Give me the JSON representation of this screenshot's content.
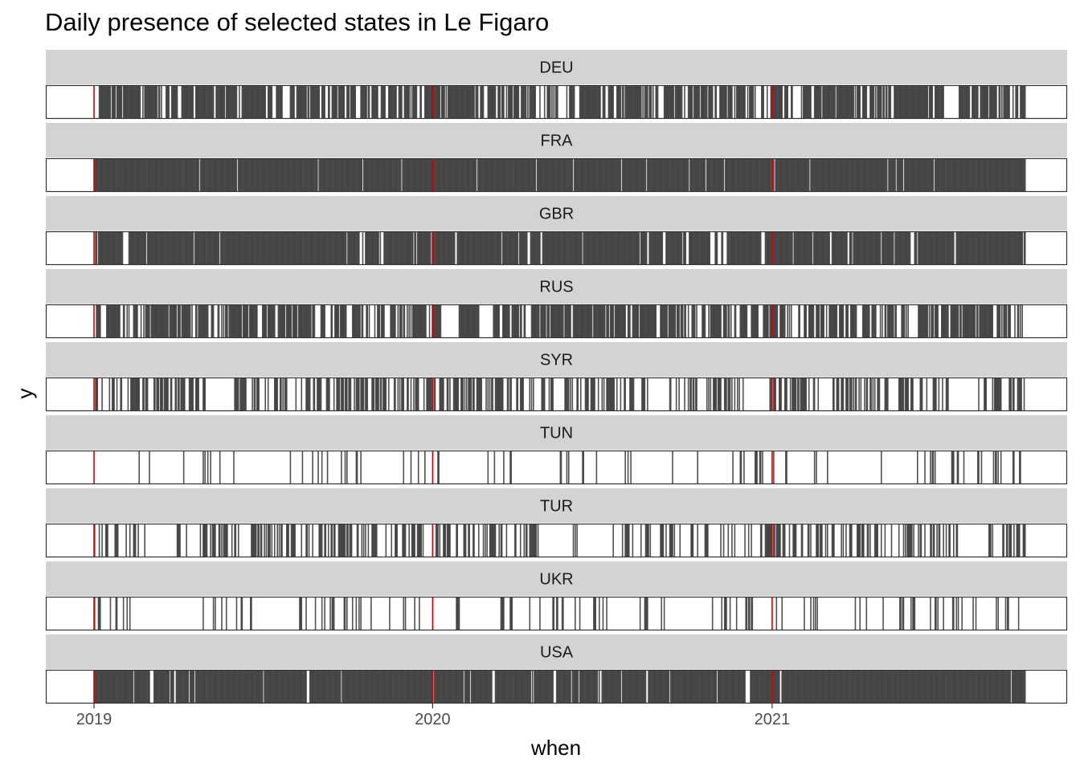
{
  "chart_data": {
    "type": "barcode",
    "title": "Daily presence of selected states in Le Figaro",
    "xlabel": "when",
    "ylabel": "y",
    "x_range": [
      "2018-11-10",
      "2021-11-15"
    ],
    "data_range": [
      "2019-01-01",
      "2021-09-30"
    ],
    "x_ticks": [
      {
        "label": "2019",
        "date": "2019-01-01"
      },
      {
        "label": "2020",
        "date": "2020-01-01"
      },
      {
        "label": "2021",
        "date": "2021-01-01"
      }
    ],
    "reference_lines": {
      "color": "#d00000",
      "dates": [
        "2019-01-01",
        "2020-01-01",
        "2021-01-01"
      ]
    },
    "mark_color": "#333333",
    "strip_fill": "#d3d3d3",
    "panel_border": "#333333",
    "facets": [
      {
        "label": "DEU",
        "gaps": [
          [
            "2019-02-20",
            "2019-02-21"
          ],
          [
            "2019-05-10",
            "2019-05-11"
          ],
          [
            "2019-09-12",
            "2019-09-13"
          ],
          [
            "2019-10-10",
            "2019-10-12"
          ],
          [
            "2020-02-26",
            "2020-02-27"
          ],
          [
            "2020-04-26",
            "2020-04-29"
          ],
          [
            "2020-05-22",
            "2020-05-23"
          ],
          [
            "2020-07-05",
            "2020-07-07"
          ],
          [
            "2020-11-02",
            "2020-11-04"
          ],
          [
            "2021-01-28",
            "2021-01-31"
          ],
          [
            "2021-07-05",
            "2021-07-20"
          ],
          [
            "2021-08-02",
            "2021-08-03"
          ]
        ],
        "density": 0.64
      },
      {
        "label": "FRA",
        "gaps": [],
        "density": 1.0
      },
      {
        "label": "GBR",
        "gaps": [],
        "density": 0.7
      },
      {
        "label": "RUS",
        "gaps": [
          [
            "2020-01-10",
            "2020-01-25"
          ],
          [
            "2020-02-20",
            "2020-03-05"
          ],
          [
            "2020-04-10",
            "2020-04-15"
          ]
        ],
        "density": 0.6
      },
      {
        "label": "SYR",
        "gaps": [
          [
            "2019-05-01",
            "2019-05-30"
          ],
          [
            "2020-05-10",
            "2020-05-20"
          ],
          [
            "2020-08-20",
            "2020-09-10"
          ],
          [
            "2020-12-01",
            "2020-12-28"
          ],
          [
            "2021-07-10",
            "2021-08-10"
          ]
        ],
        "density": 0.45
      },
      {
        "label": "TUN",
        "gaps": [
          [
            "2019-01-10",
            "2019-02-10"
          ],
          [
            "2019-03-05",
            "2019-04-05"
          ],
          [
            "2019-06-01",
            "2019-07-05"
          ],
          [
            "2019-10-25",
            "2019-11-28"
          ],
          [
            "2020-01-20",
            "2020-02-25"
          ],
          [
            "2020-04-10",
            "2020-05-15"
          ],
          [
            "2020-08-10",
            "2020-09-10"
          ],
          [
            "2020-10-20",
            "2020-11-15"
          ],
          [
            "2021-03-05",
            "2021-04-05"
          ]
        ],
        "density": 0.14
      },
      {
        "label": "TUR",
        "gaps": [
          [
            "2019-03-01",
            "2019-03-25"
          ],
          [
            "2020-05-01",
            "2020-05-30"
          ],
          [
            "2020-06-05",
            "2020-07-10"
          ],
          [
            "2021-07-20",
            "2021-08-20"
          ]
        ],
        "density": 0.4
      },
      {
        "label": "UKR",
        "gaps": [
          [
            "2019-03-01",
            "2019-04-10"
          ],
          [
            "2019-06-20",
            "2019-07-25"
          ],
          [
            "2019-12-20",
            "2020-01-25"
          ],
          [
            "2020-02-01",
            "2020-03-10"
          ],
          [
            "2020-07-10",
            "2020-08-01"
          ],
          [
            "2020-09-10",
            "2020-10-20"
          ],
          [
            "2021-02-20",
            "2021-03-20"
          ],
          [
            "2021-08-10",
            "2021-08-28"
          ]
        ],
        "density": 0.17
      },
      {
        "label": "USA",
        "gaps": [],
        "density": 0.92
      }
    ]
  }
}
